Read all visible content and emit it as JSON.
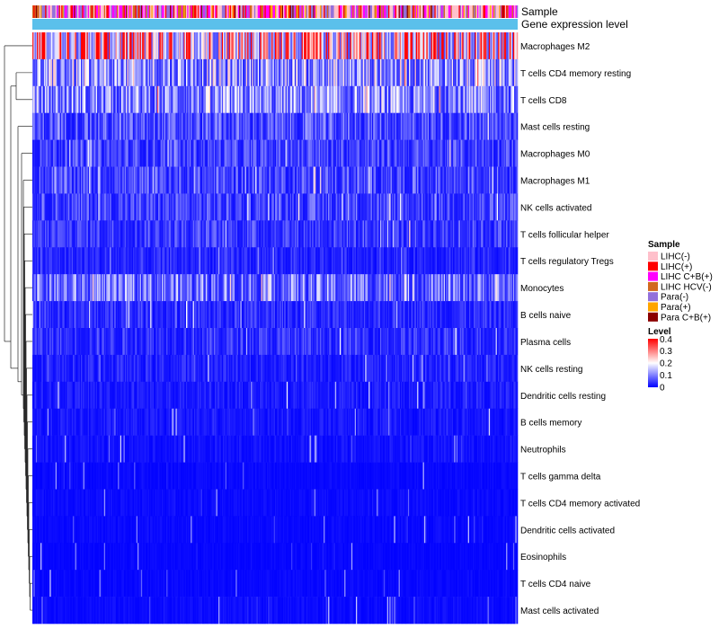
{
  "chart_data": {
    "type": "heatmap",
    "title": "",
    "column_annotations": [
      {
        "name": "Sample"
      },
      {
        "name": "Gene expression level"
      }
    ],
    "rows": [
      {
        "label": "Macrophages M2",
        "mean": 0.3
      },
      {
        "label": "T cells CD4 memory resting",
        "mean": 0.14
      },
      {
        "label": "T cells CD8",
        "mean": 0.12
      },
      {
        "label": "Mast cells resting",
        "mean": 0.07
      },
      {
        "label": "Macrophages M0",
        "mean": 0.06
      },
      {
        "label": "Macrophages M1",
        "mean": 0.065
      },
      {
        "label": "NK cells activated",
        "mean": 0.06
      },
      {
        "label": "T cells follicular helper",
        "mean": 0.055
      },
      {
        "label": "T cells regulatory  Tregs",
        "mean": 0.035
      },
      {
        "label": "Monocytes",
        "mean": 0.1
      },
      {
        "label": "B cells naive",
        "mean": 0.04
      },
      {
        "label": "Plasma cells",
        "mean": 0.045
      },
      {
        "label": "NK cells resting",
        "mean": 0.03
      },
      {
        "label": "Dendritic cells resting",
        "mean": 0.025
      },
      {
        "label": "B cells memory",
        "mean": 0.02
      },
      {
        "label": "Neutrophils",
        "mean": 0.015
      },
      {
        "label": "T cells gamma delta",
        "mean": 0.008
      },
      {
        "label": "T cells CD4 memory activated",
        "mean": 0.01
      },
      {
        "label": "Dendritic cells activated",
        "mean": 0.008
      },
      {
        "label": "Eosinophils",
        "mean": 0.006
      },
      {
        "label": "T cells CD4 naive",
        "mean": 0.007
      },
      {
        "label": "Mast cells activated",
        "mean": 0.01
      }
    ],
    "n_columns": 420,
    "color_scale": {
      "title": "Level",
      "min": 0,
      "max": 0.4,
      "ticks": [
        "0.4",
        "0.3",
        "0.2",
        "0.1",
        "0"
      ],
      "tick_values": [
        0.4,
        0.3,
        0.2,
        0.1,
        0
      ],
      "stops": [
        {
          "value": 0,
          "color": "#0000ff"
        },
        {
          "value": 0.2,
          "color": "#ffffff"
        },
        {
          "value": 0.4,
          "color": "#ff0000"
        }
      ]
    },
    "sample_legend": {
      "title": "Sample",
      "items": [
        {
          "label": "LIHC(-)",
          "color": "#ffc0cb"
        },
        {
          "label": "LIHC(+)",
          "color": "#ff0000"
        },
        {
          "label": "LIHC C+B(+)",
          "color": "#ff00ff"
        },
        {
          "label": "LIHC HCV(-)",
          "color": "#d2691e"
        },
        {
          "label": "Para(-)",
          "color": "#9370db"
        },
        {
          "label": "Para(+)",
          "color": "#ffa500"
        },
        {
          "label": "Para C+B(+)",
          "color": "#8b0000"
        }
      ]
    },
    "gene_expression_color": "#5bc0eb",
    "dendrogram": "rows"
  }
}
